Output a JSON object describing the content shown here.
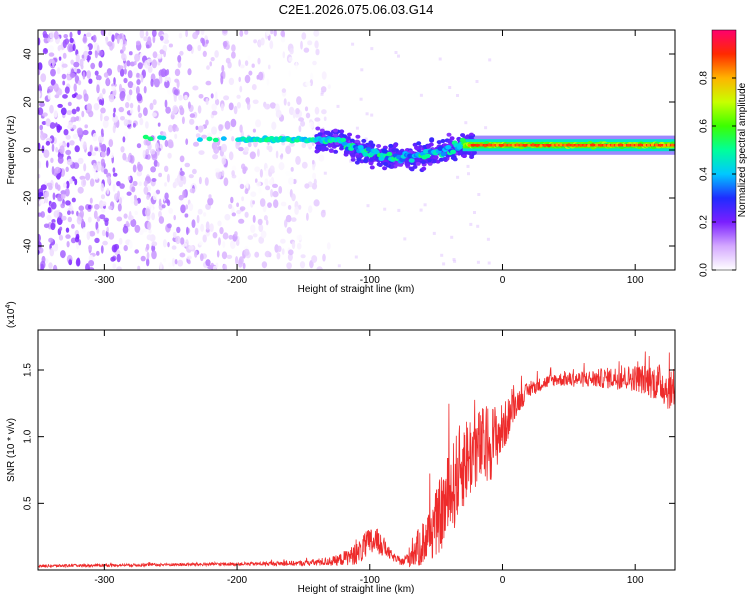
{
  "title": "C2E1.2026.075.06.03.G14",
  "chart_data": [
    {
      "type": "heatmap",
      "xlabel": "Height of straight line (km)",
      "ylabel": "Frequency (Hz)",
      "xlim": [
        -350,
        130
      ],
      "ylim": [
        -50,
        50
      ],
      "xticks": [
        -300,
        -200,
        -100,
        0,
        100
      ],
      "yticks": [
        -40,
        -20,
        0,
        20,
        40
      ],
      "colorbar": {
        "label": "Normalized spectral amplitude",
        "range": [
          0.0,
          1.0
        ],
        "ticks": [
          0.0,
          0.2,
          0.4,
          0.6,
          0.8
        ]
      },
      "regions": [
        {
          "name": "broadband-noise",
          "x_range": [
            -350,
            -140
          ],
          "freq_range": [
            -50,
            50
          ],
          "amplitude": 0.1
        },
        {
          "name": "signal-track-onset",
          "x_range": [
            -270,
            -120
          ],
          "freq_center": 5,
          "amplitude": 0.45
        },
        {
          "name": "signal-track-dispersed",
          "x_range": [
            -120,
            -30
          ],
          "freq_center": 0,
          "amplitude": 0.5
        },
        {
          "name": "signal-track-stable",
          "x_range": [
            -30,
            130
          ],
          "freq_center": 2,
          "amplitude": 0.95
        }
      ]
    },
    {
      "type": "line",
      "xlabel": "Height of straight line (km)",
      "ylabel": "SNR (10 * v/v)",
      "yscale_label": "(x10",
      "yscale_exp": "4",
      "xlim": [
        -350,
        130
      ],
      "ylim": [
        0,
        1.8
      ],
      "xticks": [
        -300,
        -200,
        -100,
        0,
        100
      ],
      "yticks": [
        0.5,
        1.0,
        1.5
      ],
      "series": [
        {
          "name": "SNR",
          "color": "#ee2b2b",
          "x": [
            -350,
            -300,
            -250,
            -200,
            -150,
            -125,
            -110,
            -100,
            -95,
            -90,
            -85,
            -80,
            -75,
            -70,
            -60,
            -50,
            -40,
            -30,
            -20,
            -10,
            0,
            5,
            10,
            20,
            30,
            40,
            60,
            80,
            100,
            110,
            120,
            125,
            130
          ],
          "y": [
            0.03,
            0.035,
            0.04,
            0.045,
            0.05,
            0.07,
            0.12,
            0.2,
            0.22,
            0.18,
            0.12,
            0.08,
            0.06,
            0.1,
            0.2,
            0.35,
            0.55,
            0.8,
            0.9,
            0.95,
            1.05,
            1.15,
            1.25,
            1.35,
            1.4,
            1.43,
            1.43,
            1.44,
            1.44,
            1.42,
            1.4,
            1.35,
            1.35
          ],
          "noise_amplitude": [
            0.01,
            0.01,
            0.012,
            0.012,
            0.02,
            0.04,
            0.08,
            0.12,
            0.1,
            0.08,
            0.04,
            0.03,
            0.03,
            0.08,
            0.18,
            0.25,
            0.35,
            0.35,
            0.3,
            0.3,
            0.2,
            0.15,
            0.1,
            0.06,
            0.05,
            0.05,
            0.06,
            0.08,
            0.1,
            0.12,
            0.15,
            0.15,
            0.12
          ]
        }
      ]
    }
  ]
}
